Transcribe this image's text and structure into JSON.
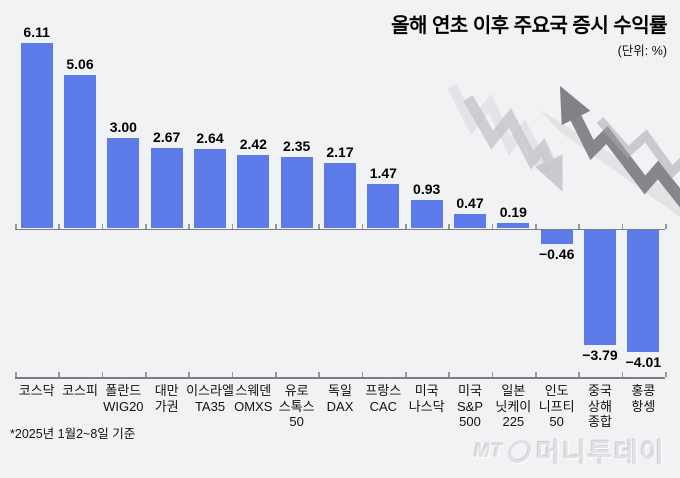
{
  "title": "올해 연초 이후 주요국 증시 수익률",
  "unit_label": "(단위: %)",
  "footnote": "*2025년 1월2~8일 기준",
  "watermark": {
    "mt": "MT",
    "name": "머니투데이"
  },
  "colors": {
    "bar": "#5C7AE8",
    "background": "#F1F2F4",
    "axis": "#7d7d82",
    "title_text": "#000000",
    "watermark_text": "#E0E1E4",
    "arrow_dark": "#85878C",
    "arrow_light": "#C2C4C9"
  },
  "chart_data": {
    "type": "bar",
    "title": "올해 연초 이후 주요국 증시 수익률",
    "unit": "%",
    "categories": [
      "코스닥",
      "코스피",
      "폴란드\nWIG20",
      "대만\n가권",
      "이스라엘\nTA35",
      "스웨덴\nOMXS",
      "유로\n스톡스\n50",
      "독일\nDAX",
      "프랑스\nCAC",
      "미국\n나스닥",
      "미국\nS&P\n500",
      "일본\n닛케이\n225",
      "인도\n니프티\n50",
      "중국\n상해\n종합",
      "홍콩\n항셍"
    ],
    "values": [
      6.11,
      5.06,
      3.0,
      2.67,
      2.64,
      2.42,
      2.35,
      2.17,
      1.47,
      0.93,
      0.47,
      0.19,
      -0.46,
      -3.79,
      -4.01
    ],
    "value_labels": [
      "6.11",
      "5.06",
      "3.00",
      "2.67",
      "2.64",
      "2.42",
      "2.35",
      "2.17",
      "1.47",
      "0.93",
      "0.47",
      "0.19",
      "−0.46",
      "−3.79",
      "−4.01"
    ],
    "ylim": [
      -4.5,
      6.5
    ],
    "grid": false,
    "legend": null,
    "orientation": "vertical"
  },
  "decoration": {
    "arrows": [
      "ghost-downtrend-arrow",
      "light-downtrend-arrow",
      "dark-uptrend-arrow"
    ]
  }
}
